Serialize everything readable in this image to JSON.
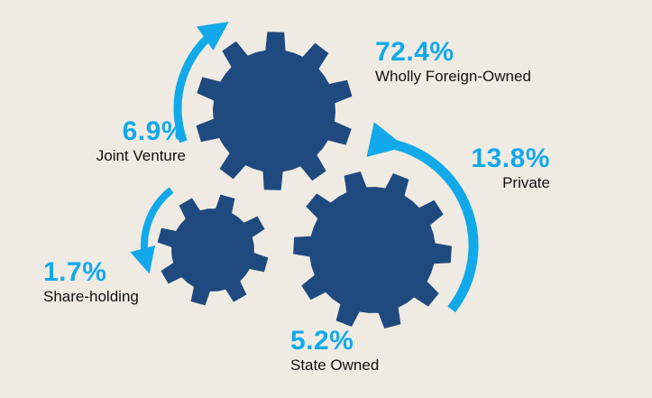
{
  "colors": {
    "background": "#efebe2",
    "gear": "#1f4a7f",
    "arrow": "#12a9ea",
    "percent_text": "#12a9ea",
    "name_text": "#111111"
  },
  "chart_data": {
    "type": "pie",
    "categories": [
      "Wholly Foreign-Owned",
      "Private",
      "Joint Venture",
      "State Owned",
      "Share-holding"
    ],
    "values": [
      72.4,
      13.8,
      6.9,
      5.2,
      1.7
    ],
    "unit": "%"
  },
  "labels": {
    "wholly_foreign_owned": {
      "percent": "72.4%",
      "name": "Wholly Foreign-Owned"
    },
    "joint_venture": {
      "percent": "6.9%",
      "name": "Joint Venture"
    },
    "private": {
      "percent": "13.8%",
      "name": "Private"
    },
    "share_holding": {
      "percent": "1.7%",
      "name": "Share-holding"
    },
    "state_owned": {
      "percent": "5.2%",
      "name": "State Owned"
    }
  }
}
